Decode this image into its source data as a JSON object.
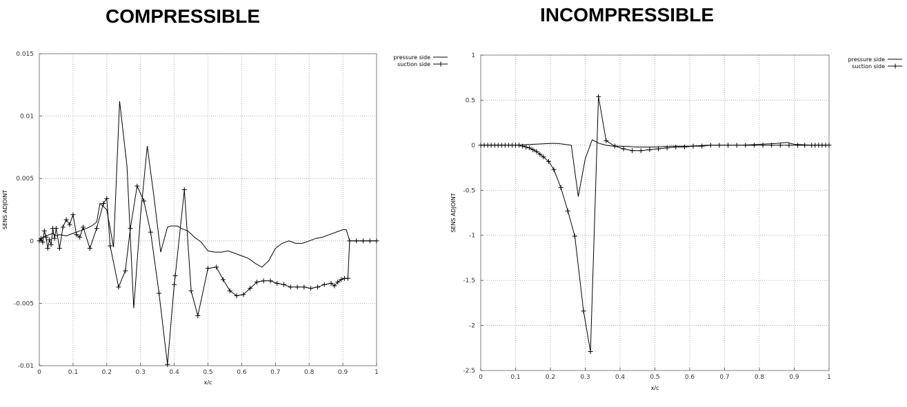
{
  "titles": {
    "left": "COMPRESSIBLE",
    "right": "INCOMPRESSIBLE"
  },
  "chart_data": [
    {
      "type": "line",
      "title": "COMPRESSIBLE",
      "xlabel": "x/c",
      "ylabel": "SENS ADJOINT",
      "xlim": [
        0,
        1
      ],
      "ylim": [
        -0.01,
        0.015
      ],
      "xticks": [
        0,
        0.1,
        0.2,
        0.3,
        0.4,
        0.5,
        0.6,
        0.7,
        0.8,
        0.9,
        1
      ],
      "xtick_labels": [
        "0",
        "0.1",
        "0.2",
        "0.3",
        "0.4",
        "0.5",
        "0.6",
        "0.7",
        "0.8",
        "0.9",
        "1"
      ],
      "yticks": [
        -0.01,
        -0.005,
        0,
        0.005,
        0.01,
        0.015
      ],
      "ytick_labels": [
        "-0.01",
        "-0.005",
        "0",
        "0.005",
        "0.01",
        "0.015"
      ],
      "grid": true,
      "legend_position": "top-right",
      "series": [
        {
          "name": "pressure side",
          "marker": "none",
          "x": [
            0,
            0.01,
            0.02,
            0.03,
            0.04,
            0.05,
            0.06,
            0.08,
            0.1,
            0.12,
            0.14,
            0.155,
            0.17,
            0.18,
            0.2,
            0.22,
            0.238,
            0.26,
            0.28,
            0.3,
            0.32,
            0.34,
            0.36,
            0.38,
            0.39,
            0.41,
            0.42,
            0.44,
            0.46,
            0.48,
            0.5,
            0.52,
            0.54,
            0.56,
            0.58,
            0.6,
            0.62,
            0.64,
            0.66,
            0.68,
            0.7,
            0.72,
            0.74,
            0.76,
            0.78,
            0.8,
            0.82,
            0.84,
            0.86,
            0.88,
            0.9,
            0.91,
            0.92,
            0.95,
            1.0
          ],
          "y": [
            0,
            0.0003,
            0.0004,
            0.0005,
            0.0006,
            0.0004,
            0.0005,
            0.0004,
            0.0006,
            0.0008,
            0.001,
            0.0012,
            0.0015,
            0.003,
            0.0025,
            -0.0005,
            0.0112,
            0.006,
            -0.0054,
            0.002,
            0.0076,
            0.0035,
            -0.0009,
            0.0011,
            0.0012,
            0.0012,
            0.001,
            0.0008,
            0.0003,
            -0.0001,
            -0.0008,
            -0.0009,
            -0.0009,
            -0.0008,
            -0.001,
            -0.0012,
            -0.0014,
            -0.0018,
            -0.0021,
            -0.0016,
            -0.0006,
            -0.0002,
            0.0,
            -0.0002,
            -0.0002,
            0.0,
            0.0002,
            0.0003,
            0.0005,
            0.0007,
            0.0009,
            0.0009,
            0,
            0,
            0
          ]
        },
        {
          "name": "suction side",
          "marker": "+",
          "x": [
            0,
            0.005,
            0.01,
            0.015,
            0.02,
            0.025,
            0.03,
            0.035,
            0.04,
            0.045,
            0.05,
            0.06,
            0.07,
            0.08,
            0.09,
            0.1,
            0.11,
            0.12,
            0.13,
            0.15,
            0.17,
            0.19,
            0.2,
            0.21,
            0.235,
            0.255,
            0.27,
            0.29,
            0.31,
            0.33,
            0.355,
            0.38,
            0.4,
            0.403,
            0.43,
            0.45,
            0.47,
            0.5,
            0.525,
            0.545,
            0.565,
            0.585,
            0.605,
            0.625,
            0.645,
            0.665,
            0.685,
            0.705,
            0.725,
            0.745,
            0.765,
            0.785,
            0.805,
            0.825,
            0.845,
            0.865,
            0.875,
            0.885,
            0.895,
            0.905,
            0.915,
            0.92,
            0.94,
            0.96,
            0.98,
            1.0
          ],
          "y": [
            0,
            0.0002,
            -0.0001,
            0.0008,
            0.0003,
            -0.0006,
            0.0001,
            -0.0003,
            0.001,
            0.0002,
            0.001,
            -0.0006,
            0.0011,
            0.0017,
            0.0013,
            0.0021,
            0.0005,
            0.0003,
            0.0011,
            -0.0006,
            0.001,
            0.003,
            0.0034,
            -0.0004,
            -0.0037,
            -0.0024,
            0.001,
            0.0044,
            0.0032,
            0.0007,
            -0.0042,
            -0.0099,
            -0.0035,
            -0.0028,
            0.0041,
            -0.004,
            -0.006,
            -0.0022,
            -0.0021,
            -0.0031,
            -0.004,
            -0.0044,
            -0.0043,
            -0.0038,
            -0.0033,
            -0.0032,
            -0.0032,
            -0.0034,
            -0.0035,
            -0.0037,
            -0.0037,
            -0.0037,
            -0.0038,
            -0.0037,
            -0.0035,
            -0.0034,
            -0.0036,
            -0.0033,
            -0.0031,
            -0.003,
            -0.003,
            0,
            0,
            0,
            0,
            0
          ]
        }
      ]
    },
    {
      "type": "line",
      "title": "INCOMPRESSIBLE",
      "xlabel": "x/c",
      "ylabel": "SENS ADJOINT",
      "xlim": [
        0,
        1
      ],
      "ylim": [
        -2.5,
        1
      ],
      "xticks": [
        0,
        0.1,
        0.2,
        0.3,
        0.4,
        0.5,
        0.6,
        0.7,
        0.8,
        0.9,
        1
      ],
      "xtick_labels": [
        "0",
        "0.1",
        "0.2",
        "0.3",
        "0.4",
        "0.5",
        "0.6",
        "0.7",
        "0.8",
        "0.9",
        "1"
      ],
      "yticks": [
        -2.5,
        -2,
        -1.5,
        -1,
        -0.5,
        0,
        0.5,
        1
      ],
      "ytick_labels": [
        "-2.5",
        "-2",
        "-1.5",
        "-1",
        "-0.5",
        "0",
        "0.5",
        "1"
      ],
      "grid": true,
      "legend_position": "top-right",
      "series": [
        {
          "name": "pressure side",
          "marker": "none",
          "x": [
            0,
            0.05,
            0.1,
            0.15,
            0.2,
            0.22,
            0.24,
            0.26,
            0.28,
            0.3,
            0.32,
            0.34,
            0.36,
            0.38,
            0.4,
            0.45,
            0.5,
            0.55,
            0.6,
            0.65,
            0.7,
            0.75,
            0.8,
            0.85,
            0.88,
            0.9,
            0.95,
            1.0
          ],
          "y": [
            0,
            0,
            0,
            0.01,
            0.02,
            0.02,
            0.01,
            0.0,
            -0.57,
            -0.15,
            0.06,
            0.02,
            0.0,
            -0.01,
            -0.01,
            -0.02,
            -0.02,
            -0.01,
            -0.01,
            0,
            0,
            0,
            0.01,
            0.02,
            0.03,
            0.01,
            0,
            0
          ]
        },
        {
          "name": "suction side",
          "marker": "+",
          "x": [
            0,
            0.01,
            0.02,
            0.03,
            0.04,
            0.05,
            0.06,
            0.07,
            0.08,
            0.09,
            0.1,
            0.11,
            0.12,
            0.13,
            0.14,
            0.15,
            0.16,
            0.17,
            0.18,
            0.195,
            0.21,
            0.23,
            0.25,
            0.27,
            0.295,
            0.315,
            0.338,
            0.36,
            0.385,
            0.41,
            0.435,
            0.46,
            0.485,
            0.51,
            0.535,
            0.56,
            0.585,
            0.61,
            0.635,
            0.66,
            0.685,
            0.71,
            0.735,
            0.76,
            0.785,
            0.81,
            0.835,
            0.86,
            0.885,
            0.91,
            0.93,
            0.95,
            0.96,
            0.97,
            0.98,
            0.99,
            1.0
          ],
          "y": [
            0,
            0,
            0,
            0,
            0,
            0,
            0,
            0,
            0,
            0,
            0,
            0,
            -0.01,
            -0.02,
            -0.03,
            -0.05,
            -0.07,
            -0.1,
            -0.13,
            -0.18,
            -0.27,
            -0.47,
            -0.73,
            -1.01,
            -1.84,
            -2.29,
            0.54,
            0.05,
            -0.01,
            -0.04,
            -0.06,
            -0.06,
            -0.05,
            -0.04,
            -0.03,
            -0.02,
            -0.02,
            -0.01,
            -0.01,
            0,
            0,
            0,
            0,
            0,
            0,
            0,
            0,
            0,
            0,
            0,
            0,
            0,
            0,
            0,
            0,
            0,
            0
          ]
        }
      ]
    }
  ]
}
